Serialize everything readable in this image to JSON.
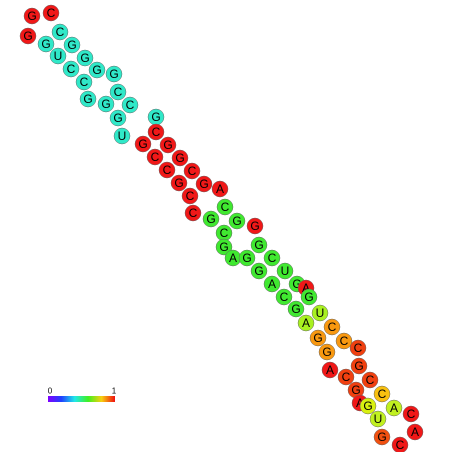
{
  "legend": {
    "min": "0",
    "max": "1"
  },
  "nodes": [
    {
      "label": "G",
      "color": "#f01818"
    },
    {
      "label": "C",
      "color": "#f01818"
    },
    {
      "label": "G",
      "color": "#f01818"
    },
    {
      "label": "G",
      "color": "#30e8c8"
    },
    {
      "label": "C",
      "color": "#30e8c8"
    },
    {
      "label": "G",
      "color": "#30e8c8"
    },
    {
      "label": "U",
      "color": "#30e8c8"
    },
    {
      "label": "G",
      "color": "#30e8c8"
    },
    {
      "label": "C",
      "color": "#30e8c8"
    },
    {
      "label": "G",
      "color": "#30e8c8"
    },
    {
      "label": "C",
      "color": "#30e8c8"
    },
    {
      "label": "G",
      "color": "#30e8c8"
    },
    {
      "label": "C",
      "color": "#30e8c8"
    },
    {
      "label": "C",
      "color": "#30e8c8"
    },
    {
      "label": "G",
      "color": "#30e8c8"
    },
    {
      "label": "G",
      "color": "#30e8c8"
    },
    {
      "label": "G",
      "color": "#30e8c8"
    },
    {
      "label": "U",
      "color": "#30e8c8"
    },
    {
      "label": "G",
      "color": "#30e8c8"
    },
    {
      "label": "C",
      "color": "#f01818"
    },
    {
      "label": "G",
      "color": "#f01818"
    },
    {
      "label": "G",
      "color": "#f01818"
    },
    {
      "label": "C",
      "color": "#f01818"
    },
    {
      "label": "G",
      "color": "#f01818"
    },
    {
      "label": "C",
      "color": "#f01818"
    },
    {
      "label": "C",
      "color": "#f01818"
    },
    {
      "label": "G",
      "color": "#f01818"
    },
    {
      "label": "G",
      "color": "#f01818"
    },
    {
      "label": "A",
      "color": "#f01818"
    },
    {
      "label": "C",
      "color": "#f01818"
    },
    {
      "label": "C",
      "color": "#f01818"
    },
    {
      "label": "G",
      "color": "#40e830"
    },
    {
      "label": "C",
      "color": "#40e830"
    },
    {
      "label": "G",
      "color": "#40e830"
    },
    {
      "label": "G",
      "color": "#f01818"
    },
    {
      "label": "C",
      "color": "#40e830"
    },
    {
      "label": "G",
      "color": "#40e830"
    },
    {
      "label": "G",
      "color": "#40e830"
    },
    {
      "label": "A",
      "color": "#40e830"
    },
    {
      "label": "G",
      "color": "#40e830"
    },
    {
      "label": "C",
      "color": "#40e830"
    },
    {
      "label": "G",
      "color": "#40e830"
    },
    {
      "label": "U",
      "color": "#40e830"
    },
    {
      "label": "A",
      "color": "#40e830"
    },
    {
      "label": "G",
      "color": "#40e830"
    },
    {
      "label": "A",
      "color": "#f01818"
    },
    {
      "label": "C",
      "color": "#40e830"
    },
    {
      "label": "G",
      "color": "#40e830"
    },
    {
      "label": "G",
      "color": "#40e830"
    },
    {
      "label": "U",
      "color": "#a8f020"
    },
    {
      "label": "A",
      "color": "#a8f020"
    },
    {
      "label": "C",
      "color": "#f89810"
    },
    {
      "label": "G",
      "color": "#f89810"
    },
    {
      "label": "C",
      "color": "#f89810"
    },
    {
      "label": "G",
      "color": "#f89810"
    },
    {
      "label": "C",
      "color": "#f04010"
    },
    {
      "label": "G",
      "color": "#f04010"
    },
    {
      "label": "A",
      "color": "#f01818"
    },
    {
      "label": "C",
      "color": "#f04010"
    },
    {
      "label": "C",
      "color": "#f04010"
    },
    {
      "label": "G",
      "color": "#f04010"
    },
    {
      "label": "C",
      "color": "#f8c010"
    },
    {
      "label": "A",
      "color": "#f01818"
    },
    {
      "label": "G",
      "color": "#d8f010"
    },
    {
      "label": "A",
      "color": "#c0f020"
    },
    {
      "label": "U",
      "color": "#c0f020"
    },
    {
      "label": "C",
      "color": "#f01818"
    },
    {
      "label": "A",
      "color": "#f01818"
    },
    {
      "label": "G",
      "color": "#f05010"
    },
    {
      "label": "C",
      "color": "#f01818"
    }
  ]
}
